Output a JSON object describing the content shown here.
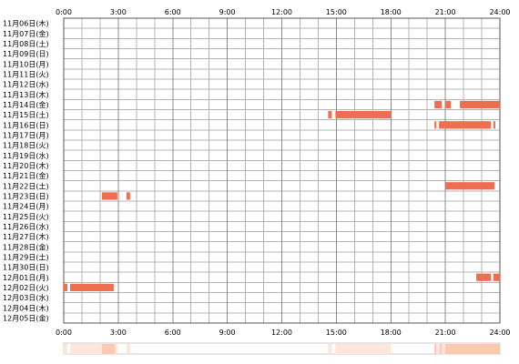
{
  "chart_data": {
    "type": "bar",
    "x_ticks": [
      "0:00",
      "3:00",
      "6:00",
      "9:00",
      "12:00",
      "15:00",
      "18:00",
      "21:00",
      "24:00"
    ],
    "rows": [
      "11月06日(木)",
      "11月07日(金)",
      "11月08日(土)",
      "11月09日(日)",
      "11月10日(月)",
      "11月11日(火)",
      "11月12日(水)",
      "11月13日(木)",
      "11月14日(金)",
      "11月15日(土)",
      "11月16日(日)",
      "11月17日(月)",
      "11月18日(火)",
      "11月19日(水)",
      "11月20日(木)",
      "11月21日(金)",
      "11月22日(土)",
      "11月23日(日)",
      "11月24日(月)",
      "11月25日(火)",
      "11月26日(水)",
      "11月27日(木)",
      "11月28日(金)",
      "11月29日(土)",
      "11月30日(日)",
      "12月01日(月)",
      "12月02日(火)",
      "12月03日(水)",
      "12月04日(木)",
      "12月05日(金)"
    ],
    "xlim": [
      0,
      24
    ],
    "grid": true,
    "activity": [
      {
        "row": "11月14日(金)",
        "segments": [
          [
            20.4,
            20.8
          ],
          [
            21.0,
            21.3
          ],
          [
            21.8,
            24.0
          ]
        ]
      },
      {
        "row": "11月15日(土)",
        "segments": [
          [
            14.55,
            14.75
          ],
          [
            14.95,
            18.0
          ]
        ]
      },
      {
        "row": "11月16日(日)",
        "segments": [
          [
            20.4,
            20.5
          ],
          [
            20.65,
            23.5
          ],
          [
            23.65,
            23.75
          ]
        ]
      },
      {
        "row": "11月22日(土)",
        "segments": [
          [
            21.0,
            23.7
          ]
        ]
      },
      {
        "row": "11月23日(日)",
        "segments": [
          [
            2.1,
            2.95
          ],
          [
            3.45,
            3.65
          ]
        ]
      },
      {
        "row": "12月01日(月)",
        "segments": [
          [
            22.7,
            23.5
          ],
          [
            23.65,
            24.0
          ]
        ]
      },
      {
        "row": "12月02日(火)",
        "segments": [
          [
            0.0,
            0.2
          ],
          [
            0.35,
            2.75
          ]
        ]
      }
    ],
    "colors": {
      "bar": "#f06e50",
      "grid": "#b4b4b4",
      "grid_major": "#8c8c8c",
      "frame": "#555555",
      "summary_strong": "#fcc8b0",
      "summary_light": "#fee6da"
    }
  }
}
